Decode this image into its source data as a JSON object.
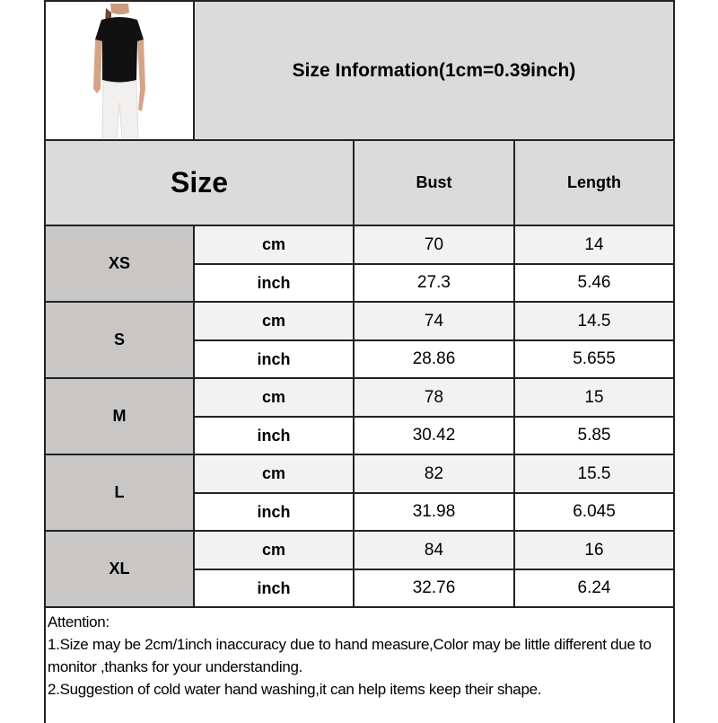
{
  "title": "Size Information(1cm=0.39inch)",
  "header": {
    "size": "Size",
    "bust": "Bust",
    "length": "Length"
  },
  "colors": {
    "header_bg": "#dcdbdc",
    "size_cell_bg": "#c9c6c6",
    "cm_row_bg": "#f2f2f2",
    "inch_row_bg": "#ffffff"
  },
  "rows": [
    {
      "size": "XS",
      "cm_label": "cm",
      "inch_label": "inch",
      "bust_cm": "70",
      "length_cm": "14",
      "bust_inch": "27.3",
      "length_inch": "5.46"
    },
    {
      "size": "S",
      "cm_label": "cm",
      "inch_label": "inch",
      "bust_cm": "74",
      "length_cm": "14.5",
      "bust_inch": "28.86",
      "length_inch": "5.655"
    },
    {
      "size": "M",
      "cm_label": "cm",
      "inch_label": "inch",
      "bust_cm": "78",
      "length_cm": "15",
      "bust_inch": "30.42",
      "length_inch": "5.85"
    },
    {
      "size": "L",
      "cm_label": "cm",
      "inch_label": "inch",
      "bust_cm": "82",
      "length_cm": "15.5",
      "bust_inch": "31.98",
      "length_inch": "6.045"
    },
    {
      "size": "XL",
      "cm_label": "cm",
      "inch_label": "inch",
      "bust_cm": "84",
      "length_cm": "16",
      "bust_inch": "32.76",
      "length_inch": "6.24"
    }
  ],
  "attention": {
    "heading": "Attention:",
    "line1": "1.Size may be 2cm/1inch inaccuracy due to hand measure,Color may be little different due to monitor ,thanks for your understanding.",
    "line2": "2.Suggestion of cold water hand washing,it can help items keep their shape."
  }
}
